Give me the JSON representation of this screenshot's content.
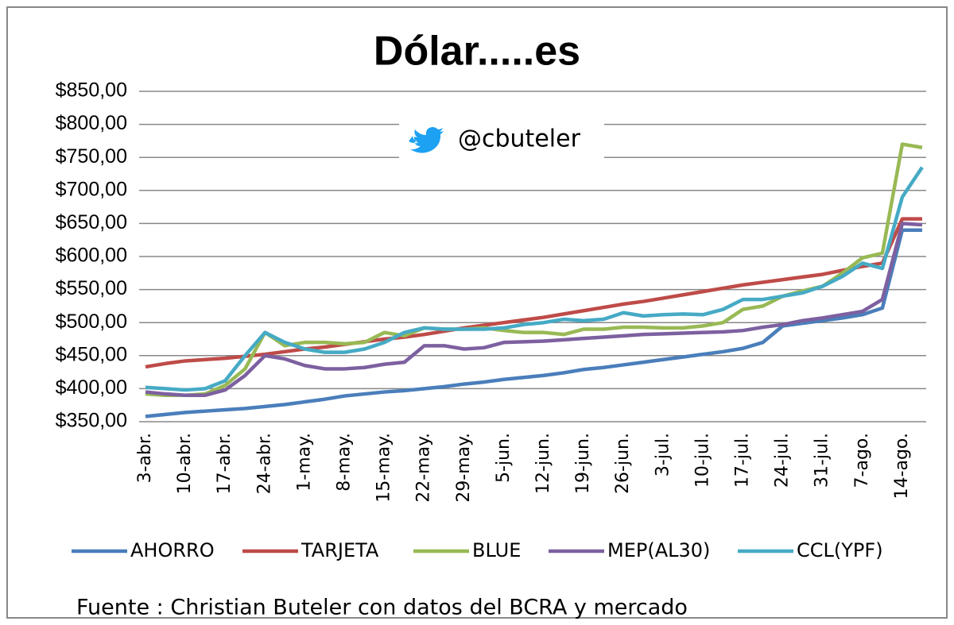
{
  "chart_data": {
    "type": "line",
    "title": "Dólar.....es",
    "annotation": "@cbuteler",
    "source": "Fuente : Christian Buteler con datos del BCRA y mercado",
    "categories": [
      "3-abr.",
      null,
      "10-abr.",
      null,
      "17-abr.",
      null,
      "24-abr.",
      null,
      "1-may.",
      null,
      "8-may.",
      null,
      "15-may.",
      null,
      "22-may.",
      null,
      "29-may.",
      null,
      "5-jun.",
      null,
      "12-jun.",
      null,
      "19-jun.",
      null,
      "26-jun.",
      null,
      "3-jul.",
      null,
      "10-jul.",
      null,
      "17-jul.",
      null,
      "24-jul.",
      null,
      "31-jul.",
      null,
      "7-ago.",
      null,
      "14-ago.",
      null
    ],
    "series": [
      {
        "name": "AHORRO",
        "color": "#4a7ebb",
        "values": [
          358,
          361,
          364,
          366,
          368,
          370,
          373,
          376,
          380,
          384,
          389,
          392,
          395,
          397,
          400,
          403,
          407,
          410,
          414,
          417,
          420,
          424,
          429,
          432,
          436,
          440,
          444,
          448,
          452,
          456,
          461,
          470,
          495,
          499,
          503,
          507,
          512,
          522,
          640,
          640
        ]
      },
      {
        "name": "TARJETA",
        "color": "#be4b48",
        "values": [
          433,
          438,
          442,
          444,
          446,
          449,
          452,
          456,
          460,
          463,
          467,
          471,
          475,
          478,
          482,
          487,
          492,
          496,
          500,
          504,
          508,
          513,
          518,
          523,
          528,
          532,
          537,
          542,
          547,
          552,
          557,
          561,
          565,
          569,
          573,
          579,
          585,
          590,
          657,
          657
        ]
      },
      {
        "name": "BLUE",
        "color": "#98b954",
        "values": [
          392,
          390,
          390,
          392,
          405,
          430,
          485,
          465,
          470,
          470,
          468,
          470,
          485,
          480,
          492,
          490,
          490,
          492,
          488,
          485,
          485,
          482,
          490,
          490,
          493,
          493,
          492,
          492,
          495,
          500,
          520,
          525,
          540,
          548,
          555,
          575,
          598,
          605,
          770,
          765
        ]
      },
      {
        "name": "MEP(AL30)",
        "color": "#7d60a0",
        "values": [
          395,
          392,
          390,
          390,
          398,
          420,
          450,
          445,
          435,
          430,
          430,
          432,
          437,
          440,
          465,
          465,
          460,
          462,
          470,
          471,
          472,
          474,
          476,
          478,
          480,
          482,
          483,
          484,
          485,
          486,
          488,
          493,
          497,
          503,
          507,
          512,
          517,
          535,
          650,
          648
        ]
      },
      {
        "name": "CCL(YPF)",
        "color": "#46aac5",
        "values": [
          402,
          400,
          398,
          400,
          412,
          450,
          485,
          470,
          460,
          455,
          455,
          460,
          470,
          485,
          492,
          490,
          490,
          490,
          492,
          497,
          500,
          505,
          503,
          505,
          515,
          510,
          512,
          513,
          512,
          520,
          535,
          535,
          540,
          545,
          555,
          570,
          590,
          582,
          690,
          735
        ]
      }
    ],
    "ylim": [
      350,
      850
    ],
    "yticks": [
      {
        "value": 350,
        "label": "$350,00"
      },
      {
        "value": 400,
        "label": "$400,00"
      },
      {
        "value": 450,
        "label": "$450,00"
      },
      {
        "value": 500,
        "label": "$500,00"
      },
      {
        "value": 550,
        "label": "$550,00"
      },
      {
        "value": 600,
        "label": "$600,00"
      },
      {
        "value": 650,
        "label": "$650,00"
      },
      {
        "value": 700,
        "label": "$700,00"
      },
      {
        "value": 750,
        "label": "$750,00"
      },
      {
        "value": 800,
        "label": "$800,00"
      },
      {
        "value": 850,
        "label": "$850,00"
      }
    ],
    "grid": true
  }
}
